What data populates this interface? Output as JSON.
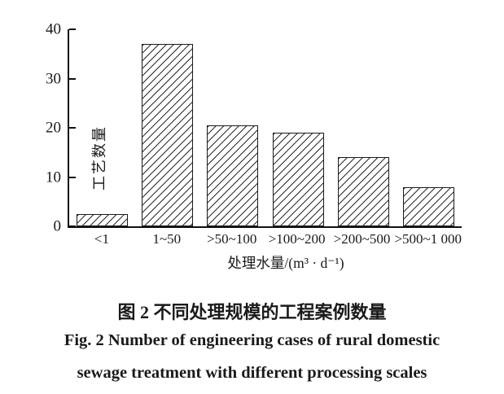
{
  "figure": {
    "captions": {
      "chinese": "图 2  不同处理规模的工程案例数量",
      "english_line1": "Fig. 2  Number of engineering cases of rural domestic",
      "english_line2": "sewage treatment with different processing scales"
    }
  },
  "chart_data": {
    "type": "bar",
    "title": "不同处理规模的工程案例数量",
    "categories": [
      "<1",
      "1~50",
      ">50~100",
      ">100~200",
      ">200~500",
      ">500~1 000"
    ],
    "values": [
      2.5,
      37,
      20.5,
      19,
      14,
      8
    ],
    "xlabel": "处理水量/(m³ · d⁻¹)",
    "ylabel": "工艺数量",
    "ylim": [
      0,
      40
    ],
    "yticks": [
      0,
      10,
      20,
      30,
      40
    ],
    "grid": false,
    "legend": null,
    "bar_fill": "diagonal-hatch",
    "bar_color": "#1a1a1a",
    "background_color": "#ffffff"
  }
}
